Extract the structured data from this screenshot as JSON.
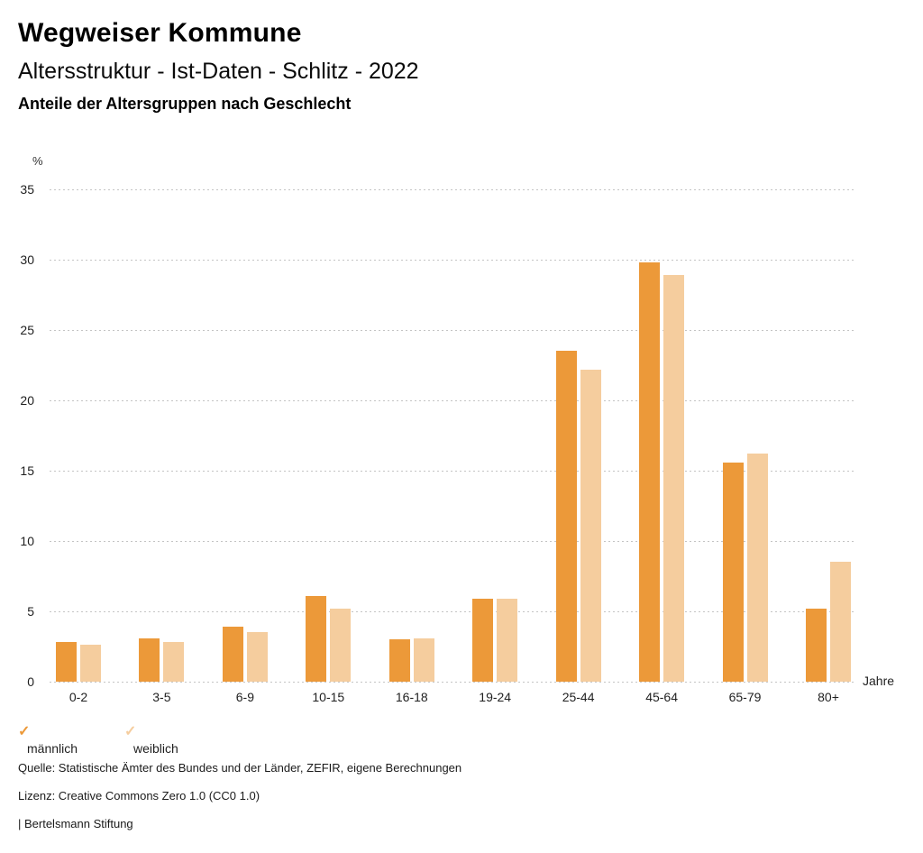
{
  "header": {
    "title": "Wegweiser Kommune",
    "subtitle": "Altersstruktur - Ist-Daten - Schlitz - 2022",
    "caption": "Anteile der Altersgruppen nach Geschlecht"
  },
  "chart_data": {
    "type": "bar",
    "title": "Anteile der Altersgruppen nach Geschlecht",
    "xlabel": "Jahre",
    "ylabel": "%",
    "categories": [
      "0-2",
      "3-5",
      "6-9",
      "10-15",
      "16-18",
      "19-24",
      "25-44",
      "45-64",
      "65-79",
      "80+"
    ],
    "series": [
      {
        "name": "männlich",
        "color": "#EC9939",
        "values": [
          2.8,
          3.1,
          3.9,
          6.1,
          3.0,
          5.9,
          23.5,
          29.8,
          15.6,
          5.2
        ]
      },
      {
        "name": "weiblich",
        "color": "#F5CD9E",
        "values": [
          2.6,
          2.8,
          3.5,
          5.2,
          3.1,
          5.9,
          22.2,
          28.9,
          16.2,
          8.5
        ]
      }
    ],
    "ylim": [
      0,
      35
    ],
    "ytick_step": 5,
    "grid": "horizontal-dotted",
    "legend_position": "bottom-left"
  },
  "legend": {
    "items": [
      {
        "label": "männlich",
        "check_color": "#EC9939"
      },
      {
        "label": "weiblich",
        "check_color": "#F5CD9E"
      }
    ]
  },
  "footer": {
    "source": "Quelle: Statistische Ämter des Bundes und der Länder, ZEFIR, eigene Berechnungen",
    "license": "Lizenz: Creative Commons Zero 1.0 (CC0 1.0)",
    "attribution": "| Bertelsmann Stiftung"
  }
}
